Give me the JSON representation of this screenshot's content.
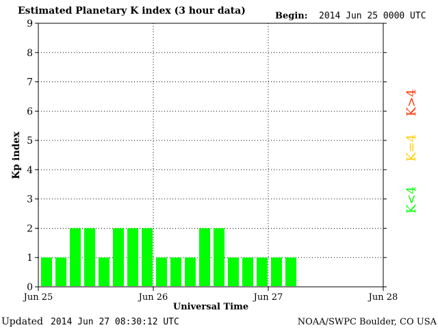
{
  "header": {
    "title": "Estimated Planetary K index (3 hour data)",
    "begin_label": "Begin:",
    "begin_value": "2014 Jun 25 0000 UTC"
  },
  "footer": {
    "updated_label": "Updated",
    "updated_value": "2014 Jun 27 08:30:12 UTC",
    "source": "NOAA/SWPC Boulder, CO USA"
  },
  "legend": {
    "k_gt_4": "K>4",
    "k_eq_4": "K=4",
    "k_lt_4": "K<4"
  },
  "colors": {
    "k_gt_4": "#ff3300",
    "k_eq_4": "#ffcc00",
    "k_lt_4": "#00ff00",
    "bar": "#00ff00",
    "grid": "#000000"
  },
  "chart_data": {
    "type": "bar",
    "xlabel": "Universal Time",
    "ylabel": "Kp index",
    "ylim": [
      0,
      9
    ],
    "yticks": [
      0,
      1,
      2,
      3,
      4,
      5,
      6,
      7,
      8,
      9
    ],
    "xticks": [
      "Jun 25",
      "Jun 26",
      "Jun 27",
      "Jun 28"
    ],
    "grid": true,
    "interval_hours": 3,
    "values": [
      1,
      1,
      2,
      2,
      1,
      2,
      2,
      2,
      1,
      1,
      1,
      2,
      2,
      1,
      1,
      1,
      1,
      1
    ]
  }
}
